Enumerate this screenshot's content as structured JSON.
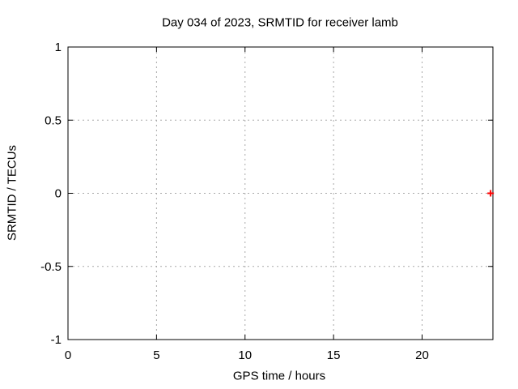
{
  "chart_data": {
    "type": "scatter",
    "title": "Day 034 of 2023, SRMTID for receiver lamb",
    "xlabel": "GPS time / hours",
    "ylabel": "SRMTID / TECUs",
    "xlim": [
      0,
      24
    ],
    "ylim": [
      -1,
      1
    ],
    "xticks": [
      0,
      5,
      10,
      15,
      20
    ],
    "yticks": [
      -1,
      -0.5,
      0,
      0.5,
      1
    ],
    "grid": "dotted",
    "legend": "none",
    "series": [
      {
        "name": "SRMTID",
        "marker": "plus",
        "color": "#ff0000",
        "points": [
          {
            "x": 23.87,
            "y": 0.0
          }
        ]
      }
    ],
    "colors": {
      "background": "#ffffff",
      "border": "#000000",
      "grid": "#a8a8a8",
      "text": "#000000"
    }
  }
}
